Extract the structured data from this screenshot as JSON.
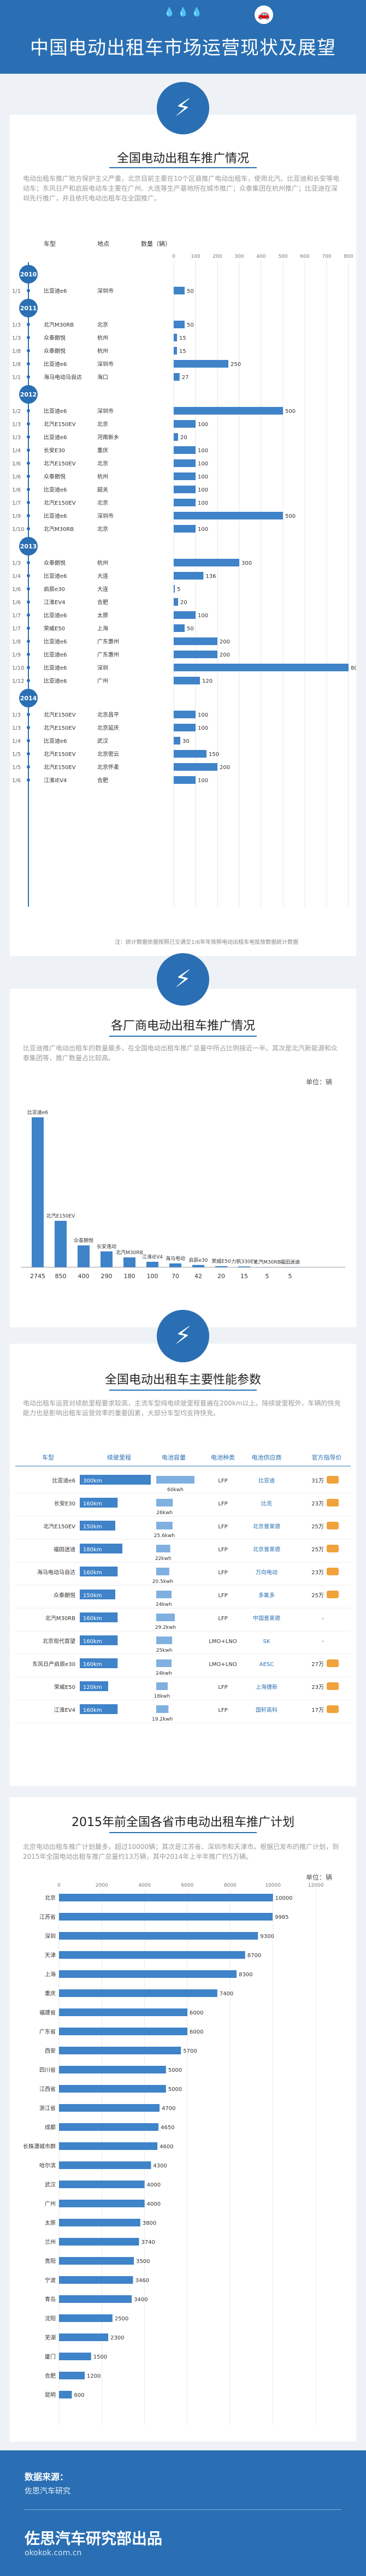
{
  "header": {
    "title": "中国电动出租车市场运营现状及展望"
  },
  "sections": {
    "s1": {
      "title": "全国电动出租车推广情况",
      "intro": "电动出租车推广地方保护主义严重，北京目前主要在10个区县推广电动出租车，使用北汽、比亚迪和长安等电动车；东风日产和启辰电动车主要在广州、大连等生产基地所在城市推广；众泰集团在杭州推广；比亚迪在深圳先行推广，并且依托电动出租车在全国推广。",
      "note": "注：统计数据依据按照已交通交1/6年年按照电动出租车电投放数据统计数据"
    },
    "s2": {
      "title": "各厂商电动出租车推广情况",
      "intro": "比亚迪推广电动出租车的数量最多，在全国电动出租车推广总量中所占比例接近一半。其次是北汽新能源和众泰集团等，推广数量占比较高。",
      "unit": "单位：辆"
    },
    "s3": {
      "title": "全国电动出租车主要性能参数",
      "intro": "电动出租车运营对续航里程要求较高，主流车型纯电续驶里程普遍在200km以上。除续驶里程外，车辆的快充能力也是影响出租车运营效率的重要因素，大部分车型均支持快充。"
    },
    "s4": {
      "title": "2015年前全国各省市电动出租车推广计划",
      "intro": "北京电动出租车推广计划最多，超过10000辆；其次是江苏省、深圳市和天津市。根据已发布的推广计划，到2015年全国电动出租车推广总量约13万辆，其中2014年上半年推广约5万辆。",
      "unit": "单位：辆"
    }
  },
  "timeline": {
    "headers": {
      "model": "车型",
      "location": "地点",
      "qty": "数量（辆）"
    },
    "axis_ticks": [
      "0",
      "100",
      "200",
      "300",
      "400",
      "500",
      "600",
      "700",
      "800"
    ],
    "years": [
      {
        "year": "2010",
        "rows": [
          {
            "date": "1/1",
            "model": "比亚迪e6",
            "loc": "深圳市",
            "qty": 50
          }
        ]
      },
      {
        "year": "2011",
        "rows": [
          {
            "date": "1/3",
            "model": "北汽M30RB",
            "loc": "北京",
            "qty": 50
          },
          {
            "date": "1/3",
            "model": "众泰朗悦",
            "loc": "杭州",
            "qty": 15
          },
          {
            "date": "1/8",
            "model": "众泰朗悦",
            "loc": "杭州",
            "qty": 15
          },
          {
            "date": "1/8",
            "model": "比亚迪e6",
            "loc": "深圳市",
            "qty": 250
          },
          {
            "date": "1/1",
            "model": "海马电动马自达",
            "loc": "海口",
            "qty": 27
          }
        ]
      },
      {
        "year": "2012",
        "rows": [
          {
            "date": "1/2",
            "model": "比亚迪e6",
            "loc": "深圳市",
            "qty": 500
          },
          {
            "date": "1/3",
            "model": "北汽E150EV",
            "loc": "北京",
            "qty": 100
          },
          {
            "date": "1/3",
            "model": "比亚迪e6",
            "loc": "河南新乡",
            "qty": 20
          },
          {
            "date": "1/4",
            "model": "长安E30",
            "loc": "重庆",
            "qty": 100
          },
          {
            "date": "1/6",
            "model": "北汽E150EV",
            "loc": "北京",
            "qty": 100
          },
          {
            "date": "1/6",
            "model": "众泰朗悦",
            "loc": "杭州",
            "qty": 100
          },
          {
            "date": "1/6",
            "model": "比亚迪e6",
            "loc": "韶关",
            "qty": 100
          },
          {
            "date": "1/7",
            "model": "北汽E150EV",
            "loc": "北京",
            "qty": 100
          },
          {
            "date": "1/9",
            "model": "比亚迪e6",
            "loc": "深圳市",
            "qty": 500
          },
          {
            "date": "1/10",
            "model": "北汽M30RB",
            "loc": "北京",
            "qty": 100
          }
        ]
      },
      {
        "year": "2013",
        "rows": [
          {
            "date": "1/3",
            "model": "众泰朗悦",
            "loc": "杭州",
            "qty": 300
          },
          {
            "date": "1/4",
            "model": "比亚迪e6",
            "loc": "大连",
            "qty": 136
          },
          {
            "date": "1/6",
            "model": "启辰e30",
            "loc": "大连",
            "qty": 5
          },
          {
            "date": "1/6",
            "model": "江淮EV4",
            "loc": "合肥",
            "qty": 20
          },
          {
            "date": "1/7",
            "model": "比亚迪e6",
            "loc": "太原",
            "qty": 100
          },
          {
            "date": "1/7",
            "model": "荣威E50",
            "loc": "上海",
            "qty": 50
          },
          {
            "date": "1/8",
            "model": "比亚迪e6",
            "loc": "广东惠州",
            "qty": 200
          },
          {
            "date": "1/9",
            "model": "比亚迪e6",
            "loc": "广东惠州",
            "qty": 200
          },
          {
            "date": "1/10",
            "model": "比亚迪e6",
            "loc": "深圳",
            "qty": 800
          },
          {
            "date": "1/12",
            "model": "比亚迪e6",
            "loc": "广州",
            "qty": 120
          }
        ]
      },
      {
        "year": "2014",
        "rows": [
          {
            "date": "1/3",
            "model": "北汽E150EV",
            "loc": "北京昌平",
            "qty": 100
          },
          {
            "date": "1/3",
            "model": "北汽E150EV",
            "loc": "北京延庆",
            "qty": 100
          },
          {
            "date": "1/4",
            "model": "比亚迪e6",
            "loc": "武汉",
            "qty": 30
          },
          {
            "date": "1/5",
            "model": "北汽E150EV",
            "loc": "北京密云",
            "qty": 150
          },
          {
            "date": "1/5",
            "model": "北汽E150EV",
            "loc": "北京怀柔",
            "qty": 200
          },
          {
            "date": "1/6",
            "model": "江淮iEV4",
            "loc": "合肥",
            "qty": 100
          }
        ]
      }
    ]
  },
  "manufacturers": {
    "labels": [
      "比亚迪e6",
      "北汽E150EV",
      "众泰朗悦",
      "长安逸动",
      "北汽M30RB",
      "江淮iEV4",
      "海马电动",
      "启辰e30",
      "荣威E50",
      "力帆330EV",
      "北汽M30RB",
      "福田迷迪"
    ],
    "values": [
      2745,
      850,
      400,
      290,
      180,
      100,
      70,
      42,
      20,
      15,
      5,
      5
    ]
  },
  "specs": {
    "headers": [
      "车型",
      "续驶里程",
      "电池容量",
      "电池种类",
      "电池供应商",
      "官方指导价"
    ],
    "rows": [
      {
        "model": "比亚迪e6",
        "range": "300km",
        "battery": "60kwh",
        "chem": "LFP",
        "supplier": "比亚迪",
        "price": "31万"
      },
      {
        "model": "长安E30",
        "range": "160km",
        "battery": "26kwh",
        "chem": "LFP",
        "supplier": "比克",
        "price": "23万"
      },
      {
        "model": "北汽E150EV",
        "range": "150km",
        "battery": "25.6kwh",
        "chem": "LFP",
        "supplier": "北京普莱德",
        "price": "25万"
      },
      {
        "model": "福田迷迪",
        "range": "180km",
        "battery": "22kwh",
        "chem": "LFP",
        "supplier": "北京普莱德",
        "price": "25万"
      },
      {
        "model": "海马电动马自达",
        "range": "160km",
        "battery": "20.5kwh",
        "chem": "LFP",
        "supplier": "万向电动",
        "price": "23万"
      },
      {
        "model": "众泰朗悦",
        "range": "150km",
        "battery": "24kwh",
        "chem": "LFP",
        "supplier": "多氟多",
        "price": "25万"
      },
      {
        "model": "北汽M30RB",
        "range": "160km",
        "battery": "29.2kwh",
        "chem": "LFP",
        "supplier": "中国普莱德",
        "price": "-"
      },
      {
        "model": "北京现代首望",
        "range": "160km",
        "battery": "25kwh",
        "chem": "LMO+LNO",
        "supplier": "SK",
        "price": "-"
      },
      {
        "model": "东风日产启辰e30",
        "range": "160km",
        "battery": "24kwh",
        "chem": "LMO+LNO",
        "supplier": "AESC",
        "price": "27万"
      },
      {
        "model": "荣威E50",
        "range": "120km",
        "battery": "18kwh",
        "chem": "LFP",
        "supplier": "上海捷新",
        "price": "23万"
      },
      {
        "model": "江淮EV4",
        "range": "160km",
        "battery": "19.2kwh",
        "chem": "LFP",
        "supplier": "国轩高科",
        "price": "17万"
      }
    ]
  },
  "chart_data": [
    {
      "type": "bar",
      "orientation": "horizontal",
      "categories": [
        "比亚迪e6",
        "北汽M30RB",
        "众泰朗悦",
        "众泰朗悦",
        "比亚迪e6",
        "海马电动马自达",
        "比亚迪e6",
        "北汽E150EV",
        "比亚迪e6",
        "长安E30",
        "北汽E150EV",
        "众泰朗悦",
        "比亚迪e6",
        "北汽E150EV",
        "比亚迪e6",
        "北汽M30RB",
        "众泰朗悦",
        "比亚迪e6",
        "启辰e30",
        "江淮EV4",
        "比亚迪e6",
        "荣威E50",
        "比亚迪e6",
        "比亚迪e6",
        "比亚迪e6",
        "比亚迪e6",
        "北汽E150EV",
        "北汽E150EV",
        "比亚迪e6",
        "北汽E150EV",
        "北汽E150EV",
        "江淮iEV4"
      ],
      "values": [
        50,
        50,
        15,
        15,
        250,
        27,
        500,
        100,
        20,
        100,
        100,
        100,
        100,
        100,
        500,
        100,
        300,
        136,
        5,
        20,
        100,
        50,
        200,
        200,
        800,
        120,
        100,
        100,
        30,
        150,
        200,
        100
      ],
      "xlim": [
        0,
        800
      ]
    },
    {
      "type": "bar",
      "categories": [
        "比亚迪e6",
        "北汽E150EV",
        "众泰朗悦",
        "长安逸动",
        "北汽M30RB",
        "江淮iEV4",
        "海马电动",
        "启辰e30",
        "荣威E50",
        "力帆330EV",
        "北汽M30RB",
        "福田迷迪"
      ],
      "values": [
        2745,
        850,
        400,
        290,
        180,
        100,
        70,
        42,
        20,
        15,
        5,
        5
      ],
      "ylim": [
        0,
        3000
      ]
    },
    {
      "type": "bar",
      "categories": [
        "比亚迪e6",
        "长安E30",
        "北汽E150EV",
        "福田迷迪",
        "海马电动马自达",
        "众泰朗悦",
        "北汽M30RB",
        "北京现代首望",
        "东风日产启辰e30",
        "荣威E50",
        "江淮EV4"
      ],
      "series": [
        {
          "name": "续驶里程",
          "values": [
            300,
            160,
            150,
            180,
            160,
            150,
            160,
            160,
            160,
            120,
            160
          ]
        },
        {
          "name": "电池容量",
          "values": [
            60,
            26,
            25.6,
            22,
            20.5,
            24,
            29.2,
            25,
            24,
            18,
            19.2
          ]
        }
      ]
    },
    {
      "type": "bar",
      "orientation": "horizontal",
      "categories": [
        "北京",
        "江苏省",
        "深圳",
        "天津",
        "上海",
        "重庆",
        "福建省",
        "广东省",
        "西安",
        "四川省",
        "江西省",
        "浙江省",
        "成都",
        "长株潭城市群",
        "哈尔滨",
        "武汉",
        "广州",
        "太原",
        "兰州",
        "贵阳",
        "宁波",
        "青岛",
        "沈阳",
        "芜湖",
        "厦门",
        "合肥",
        "昆明"
      ],
      "values": [
        10000,
        9985,
        9300,
        8700,
        8300,
        7400,
        6000,
        6000,
        5700,
        5000,
        5000,
        4700,
        4650,
        4600,
        4300,
        4000,
        4000,
        3800,
        3740,
        3500,
        3460,
        3400,
        2500,
        2300,
        1500,
        1200,
        600
      ],
      "xlim": [
        0,
        12000
      ]
    }
  ],
  "footer": {
    "source_label": "数据来源：",
    "source": "佐思汽车研究",
    "org": "佐思汽车研究部出品",
    "url": "okokok.com.cn"
  }
}
